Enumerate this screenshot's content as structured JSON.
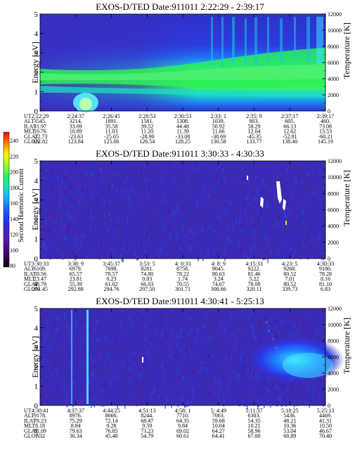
{
  "colorbar": {
    "label": "Second Harmonic Current",
    "ticks": [
      "240",
      "220",
      "200",
      "180",
      "160",
      "140",
      "120",
      "100",
      "80"
    ],
    "colors": [
      "#000000",
      "#3a006a",
      "#5a1aa8",
      "#2a2aef",
      "#1e5bff",
      "#0fb8ff",
      "#19e6b0",
      "#2bf05a",
      "#a6ff2a",
      "#fff200",
      "#ffa200",
      "#ff4400",
      "#ff0000"
    ]
  },
  "chart_data": [
    {
      "type": "heatmap",
      "title": "EXOS-D/TED   Date:911011  2:22:29 - 2:39:17",
      "ylabel": "Energy [eV]",
      "y2label": "Temperature [K]",
      "ylim": [
        0,
        5
      ],
      "yticks": [
        "0",
        "1",
        "2",
        "3",
        "4",
        "5"
      ],
      "y2ticks": [
        "0",
        "2000",
        "4000",
        "6000",
        "8000",
        "10000",
        "12000"
      ],
      "rows": [
        {
          "label": "UT",
          "values": [
            "2:22:29",
            "2:24:37",
            "2:26:45",
            "2:28:53",
            "2:30:53",
            "2:33: 1",
            "2:35: 9",
            "2:37:17",
            "2:39:17"
          ]
        },
        {
          "label": "ALT",
          "values": [
            "3545.",
            "3214.",
            "1891.",
            "1581.",
            "1308.",
            "1039.",
            "803.",
            "605.",
            "460."
          ]
        },
        {
          "label": "ILAT",
          "values": [
            "31.97",
            "33.09",
            "35.58",
            "39.52",
            "44.48",
            "50.92",
            "58.29",
            "66.13",
            "73.08"
          ]
        },
        {
          "label": "MLT",
          "values": [
            "10.76",
            "10.89",
            "11.03",
            "11.20",
            "11.39",
            "11.66",
            "12.04",
            "12.62",
            "13.53"
          ]
        },
        {
          "label": "GLAT",
          "values": [
            "-22.73",
            "-23.63",
            "-25.65",
            "-28.90",
            "-33.08",
            "-38.69",
            "-45.35",
            "-52.81",
            "-60.21"
          ]
        },
        {
          "label": "GLON",
          "values": [
            "122.82",
            "123.84",
            "125.06",
            "126.54",
            "128.25",
            "130.58",
            "133.77",
            "138.40",
            "145.19"
          ]
        }
      ]
    },
    {
      "type": "heatmap",
      "title": "EXOS-D/TED   Date:911011  3:30:33 - 4:30:33",
      "ylabel": "Energy [eV]",
      "y2label": "Temperature [K]",
      "ylim": [
        0,
        5
      ],
      "yticks": [
        "0",
        "1",
        "2",
        "3",
        "4",
        "5"
      ],
      "y2ticks": [
        "0",
        "2000",
        "4000",
        "6000",
        "8000",
        "10000",
        "12000"
      ],
      "rows": [
        {
          "label": "UT",
          "values": [
            "3:30:33",
            "3:38: 9",
            "3:45:37",
            "3:53: 5",
            "4: 0:33",
            "4: 8: 9",
            "4:15:33",
            "4:23: 5",
            "4:30:33"
          ]
        },
        {
          "label": "ALT",
          "values": [
            "6109.",
            "6979.",
            "7698.",
            "8281.",
            "8758.",
            "9045.",
            "9222.",
            "9268.",
            "9180."
          ]
        },
        {
          "label": "ILAT",
          "values": [
            "59.56",
            "65.57",
            "70.57",
            "74.80",
            "78.22",
            "80.63",
            "81.46",
            "80.52",
            "78.28"
          ]
        },
        {
          "label": "MLT",
          "values": [
            "23.47",
            "23.81",
            "0.23",
            "0.83",
            "1.74",
            "3.24",
            "5.22",
            "7.01",
            "8.16"
          ]
        },
        {
          "label": "GLAT",
          "values": [
            "48.79",
            "55.39",
            "61.02",
            "66.03",
            "70.55",
            "74.67",
            "78.08",
            "80.52",
            "81.10"
          ]
        },
        {
          "label": "GLON",
          "values": [
            "291.45",
            "292.88",
            "294.76",
            "297.50",
            "301.71",
            "308.66",
            "320.11",
            "339.73",
            "6.83"
          ]
        }
      ]
    },
    {
      "type": "heatmap",
      "title": "EXOS-D/TED   Date:911011  4:30:41 - 5:25:13",
      "ylabel": "Energy [eV]",
      "y2label": "Temperature [K]",
      "ylim": [
        0,
        5
      ],
      "yticks": [
        "0",
        "1",
        "2",
        "3",
        "4",
        "5"
      ],
      "y2ticks": [
        "0",
        "2000",
        "4000",
        "6000",
        "8000",
        "10000",
        "12000"
      ],
      "rows": [
        {
          "label": "UT",
          "values": [
            "4:30:41",
            "4:37:37",
            "4:44:25",
            "4:51:13",
            "4:58: 1",
            "5: 4:49",
            "5:11:37",
            "5:18:25",
            "5:25:13"
          ]
        },
        {
          "label": "ALT",
          "values": [
            "9178.",
            "8976.",
            "8666.",
            "8244.",
            "7710.",
            "7063.",
            "6303.",
            "5436.",
            "4469."
          ]
        },
        {
          "label": "ILAT",
          "values": [
            "78.23",
            "75.29",
            "72.14",
            "68.47",
            "64.35",
            "59.68",
            "54.35",
            "48.21",
            "41.31"
          ]
        },
        {
          "label": "MLT",
          "values": [
            "8.18",
            "8.84",
            "9.28",
            "9.59",
            "9.84",
            "10.04",
            "10.21",
            "10.36",
            "10.50"
          ]
        },
        {
          "label": "GLAT",
          "values": [
            "81.09",
            "79.63",
            "76.85",
            "73.23",
            "69.02",
            "64.27",
            "58.96",
            "53.04",
            "46.67"
          ]
        },
        {
          "label": "GLON",
          "values": [
            "7.32",
            "30.34",
            "45.48",
            "54.79",
            "60.61",
            "64.41",
            "67.00",
            "68.89",
            "70.40"
          ]
        }
      ]
    }
  ]
}
